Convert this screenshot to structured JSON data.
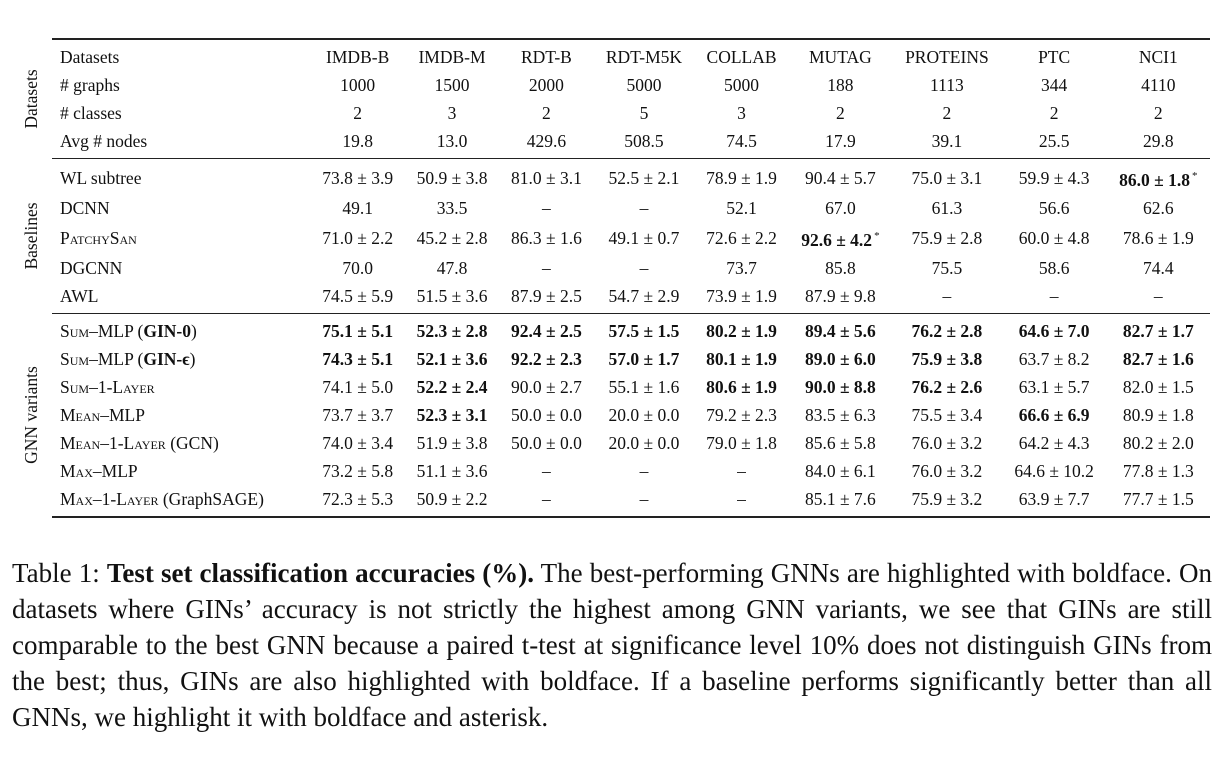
{
  "table": {
    "groups": {
      "datasets": "Datasets",
      "baselines": "Baselines",
      "gnn": "GNN variants"
    },
    "columns": [
      "IMDB-B",
      "IMDB-M",
      "RDT-B",
      "RDT-M5K",
      "COLLAB",
      "MUTAG",
      "PROTEINS",
      "PTC",
      "NCI1"
    ],
    "header_label": "Datasets",
    "dataset_rows": [
      {
        "label": "# graphs",
        "values": [
          "1000",
          "1500",
          "2000",
          "5000",
          "5000",
          "188",
          "1113",
          "344",
          "4110"
        ]
      },
      {
        "label": "# classes",
        "values": [
          "2",
          "3",
          "2",
          "5",
          "3",
          "2",
          "2",
          "2",
          "2"
        ]
      },
      {
        "label": "Avg # nodes",
        "values": [
          "19.8",
          "13.0",
          "429.6",
          "508.5",
          "74.5",
          "17.9",
          "39.1",
          "25.5",
          "29.8"
        ]
      }
    ],
    "baseline_rows": [
      {
        "label": "WL subtree",
        "values": [
          "73.8 ± 3.9",
          "50.9 ± 3.8",
          "81.0 ± 3.1",
          "52.5 ± 2.1",
          "78.9 ± 1.9",
          "90.4 ± 5.7",
          "75.0 ± 3.1",
          "59.9 ± 4.3",
          "86.0 ± 1.8"
        ]
      },
      {
        "label": "DCNN",
        "values": [
          "49.1",
          "33.5",
          "–",
          "–",
          "52.1",
          "67.0",
          "61.3",
          "56.6",
          "62.6"
        ]
      },
      {
        "label": "PatchySan",
        "values": [
          "71.0 ± 2.2",
          "45.2 ± 2.8",
          "86.3 ± 1.6",
          "49.1 ± 0.7",
          "72.6 ± 2.2",
          "92.6 ± 4.2",
          "75.9 ± 2.8",
          "60.0 ± 4.8",
          "78.6 ± 1.9"
        ]
      },
      {
        "label": "DGCNN",
        "values": [
          "70.0",
          "47.8",
          "–",
          "–",
          "73.7",
          "85.8",
          "75.5",
          "58.6",
          "74.4"
        ]
      },
      {
        "label": "AWL",
        "values": [
          "74.5 ± 5.9",
          "51.5 ± 3.6",
          "87.9 ± 2.5",
          "54.7 ± 2.9",
          "73.9 ± 1.9",
          "87.9 ± 9.8",
          "–",
          "–",
          "–"
        ]
      }
    ],
    "gnn_rows": [
      {
        "label_main": "Sum–MLP (",
        "label_bold": "GIN-0",
        "label_tail": ")",
        "values": [
          "75.1 ± 5.1",
          "52.3 ± 2.8",
          "92.4 ± 2.5",
          "57.5 ± 1.5",
          "80.2 ± 1.9",
          "89.4 ± 5.6",
          "76.2 ± 2.8",
          "64.6 ± 7.0",
          "82.7 ± 1.7"
        ]
      },
      {
        "label_main": "Sum–MLP (",
        "label_bold": "GIN-ϵ",
        "label_tail": ")",
        "values": [
          "74.3 ± 5.1",
          "52.1 ± 3.6",
          "92.2 ± 2.3",
          "57.0 ± 1.7",
          "80.1 ± 1.9",
          "89.0 ± 6.0",
          "75.9 ± 3.8",
          "63.7 ± 8.2",
          "82.7 ± 1.6"
        ]
      },
      {
        "label_main": "Sum–1-Layer",
        "label_bold": "",
        "label_tail": "",
        "values": [
          "74.1 ± 5.0",
          "52.2 ± 2.4",
          "90.0 ± 2.7",
          "55.1 ± 1.6",
          "80.6 ± 1.9",
          "90.0 ± 8.8",
          "76.2 ± 2.6",
          "63.1 ± 5.7",
          "82.0 ± 1.5"
        ]
      },
      {
        "label_main": "Mean–MLP",
        "label_bold": "",
        "label_tail": "",
        "values": [
          "73.7 ± 3.7",
          "52.3 ± 3.1",
          "50.0 ± 0.0",
          "20.0 ± 0.0",
          "79.2 ± 2.3",
          "83.5 ± 6.3",
          "75.5 ± 3.4",
          "66.6 ± 6.9",
          "80.9 ± 1.8"
        ]
      },
      {
        "label_main": "Mean–1-Layer",
        "label_bold": "",
        "label_tail": " (GCN)",
        "values": [
          "74.0 ± 3.4",
          "51.9 ± 3.8",
          "50.0 ± 0.0",
          "20.0 ± 0.0",
          "79.0 ± 1.8",
          "85.6 ± 5.8",
          "76.0 ± 3.2",
          "64.2 ± 4.3",
          "80.2 ± 2.0"
        ]
      },
      {
        "label_main": "Max–MLP",
        "label_bold": "",
        "label_tail": "",
        "values": [
          "73.2 ± 5.8",
          "51.1 ± 3.6",
          "–",
          "–",
          "–",
          "84.0 ± 6.1",
          "76.0 ± 3.2",
          "64.6 ± 10.2",
          "77.8 ± 1.3"
        ]
      },
      {
        "label_main": "Max–1-Layer",
        "label_bold": "",
        "label_tail": " (GraphSAGE)",
        "values": [
          "72.3 ± 5.3",
          "50.9 ± 2.2",
          "–",
          "–",
          "–",
          "85.1 ± 7.6",
          "75.9 ± 3.2",
          "63.9 ± 7.7",
          "77.7 ± 1.5"
        ]
      }
    ],
    "bold_cells": {
      "baseline": [
        [
          0,
          8
        ],
        [
          2,
          5
        ]
      ],
      "gnn": [
        [
          0,
          0
        ],
        [
          0,
          1
        ],
        [
          0,
          2
        ],
        [
          0,
          3
        ],
        [
          0,
          4
        ],
        [
          0,
          5
        ],
        [
          0,
          6
        ],
        [
          0,
          7
        ],
        [
          0,
          8
        ],
        [
          1,
          0
        ],
        [
          1,
          1
        ],
        [
          1,
          2
        ],
        [
          1,
          3
        ],
        [
          1,
          4
        ],
        [
          1,
          5
        ],
        [
          1,
          6
        ],
        [
          1,
          8
        ],
        [
          2,
          1
        ],
        [
          2,
          4
        ],
        [
          2,
          5
        ],
        [
          2,
          6
        ],
        [
          3,
          1
        ],
        [
          3,
          7
        ]
      ]
    },
    "asterisk_cells": [
      [
        0,
        8
      ],
      [
        2,
        5
      ]
    ],
    "asterisk": "*"
  },
  "caption": {
    "prefix": "Table 1: ",
    "bold": "Test set classification accuracies (%).",
    "text": " The best-performing GNNs are highlighted with boldface. On datasets where GINs’ accuracy is not strictly the highest among GNN variants, we see that GINs are still comparable to the best GNN because a paired t-test at significance level 10% does not distinguish GINs from the best; thus, GINs are also highlighted with boldface. If a baseline performs significantly better than all GNNs, we highlight it with boldface and asterisk."
  }
}
